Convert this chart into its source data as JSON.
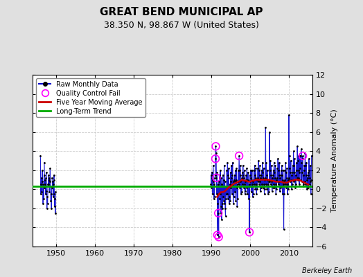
{
  "title": "GREAT BEND MUNICIPAL AP",
  "subtitle": "38.350 N, 98.867 W (United States)",
  "ylabel": "Temperature Anomaly (°C)",
  "credit": "Berkeley Earth",
  "xlim": [
    1944,
    2016
  ],
  "ylim": [
    -6,
    12
  ],
  "yticks": [
    -6,
    -4,
    -2,
    0,
    2,
    4,
    6,
    8,
    10,
    12
  ],
  "xticks": [
    1950,
    1960,
    1970,
    1980,
    1990,
    2000,
    2010
  ],
  "fig_bg": "#e0e0e0",
  "plot_bg": "#ffffff",
  "raw_color": "#0000cc",
  "dot_color": "#000000",
  "ma_color": "#cc0000",
  "trend_color": "#00aa00",
  "qc_color": "#ff00ff",
  "trend_y": 0.3,
  "raw_data_1946": [
    [
      1946.0,
      3.5
    ],
    [
      1946.08,
      -0.5
    ],
    [
      1946.17,
      0.5
    ],
    [
      1946.25,
      1.2
    ],
    [
      1946.33,
      -0.3
    ],
    [
      1946.42,
      0.8
    ],
    [
      1946.5,
      2.0
    ],
    [
      1946.58,
      0.5
    ],
    [
      1946.67,
      -1.5
    ],
    [
      1946.75,
      0.3
    ],
    [
      1946.83,
      -1.0
    ],
    [
      1946.92,
      1.5
    ]
  ],
  "raw_data_1947": [
    [
      1947.0,
      2.8
    ],
    [
      1947.08,
      0.2
    ],
    [
      1947.17,
      1.0
    ],
    [
      1947.25,
      0.5
    ],
    [
      1947.33,
      -0.5
    ],
    [
      1947.42,
      1.2
    ],
    [
      1947.5,
      1.8
    ],
    [
      1947.58,
      -0.2
    ],
    [
      1947.67,
      -2.0
    ],
    [
      1947.75,
      -0.8
    ],
    [
      1947.83,
      -1.5
    ],
    [
      1947.92,
      0.5
    ]
  ],
  "raw_data_1948": [
    [
      1948.0,
      1.5
    ],
    [
      1948.08,
      0.5
    ],
    [
      1948.17,
      1.2
    ],
    [
      1948.25,
      1.0
    ],
    [
      1948.33,
      -0.3
    ],
    [
      1948.42,
      0.8
    ],
    [
      1948.5,
      2.2
    ],
    [
      1948.58,
      0.3
    ],
    [
      1948.67,
      -1.2
    ],
    [
      1948.75,
      -0.5
    ],
    [
      1948.83,
      -2.0
    ],
    [
      1948.92,
      0.2
    ]
  ],
  "raw_data_1949": [
    [
      1949.0,
      1.2
    ],
    [
      1949.08,
      0.3
    ],
    [
      1949.17,
      0.8
    ],
    [
      1949.25,
      0.5
    ],
    [
      1949.33,
      -0.8
    ],
    [
      1949.42,
      1.0
    ],
    [
      1949.5,
      1.5
    ],
    [
      1949.58,
      -0.5
    ],
    [
      1949.67,
      -1.8
    ],
    [
      1949.75,
      -1.0
    ],
    [
      1949.83,
      -2.5
    ],
    [
      1949.92,
      -0.3
    ]
  ],
  "raw_data_1990s_on": [
    [
      1989.92,
      0.5
    ],
    [
      1990.0,
      1.5
    ],
    [
      1990.08,
      0.2
    ],
    [
      1990.17,
      1.8
    ],
    [
      1990.25,
      1.2
    ],
    [
      1990.33,
      -0.5
    ],
    [
      1990.42,
      1.0
    ],
    [
      1990.5,
      2.5
    ],
    [
      1990.58,
      0.8
    ],
    [
      1990.67,
      -1.0
    ],
    [
      1990.75,
      0.5
    ],
    [
      1990.83,
      -0.8
    ],
    [
      1990.92,
      1.2
    ],
    [
      1991.0,
      1.5
    ],
    [
      1991.08,
      3.2
    ],
    [
      1991.17,
      4.5
    ],
    [
      1991.25,
      3.8
    ],
    [
      1991.33,
      1.2
    ],
    [
      1991.42,
      -0.5
    ],
    [
      1991.5,
      1.8
    ],
    [
      1991.58,
      -4.8
    ],
    [
      1991.67,
      -1.5
    ],
    [
      1991.75,
      0.5
    ],
    [
      1991.83,
      -2.5
    ],
    [
      1991.92,
      -5.0
    ],
    [
      1992.0,
      0.8
    ],
    [
      1992.08,
      -1.0
    ],
    [
      1992.17,
      1.5
    ],
    [
      1992.25,
      -0.5
    ],
    [
      1992.33,
      2.0
    ],
    [
      1992.42,
      -2.5
    ],
    [
      1992.5,
      1.2
    ],
    [
      1992.58,
      -1.8
    ],
    [
      1992.67,
      -3.2
    ],
    [
      1992.75,
      0.5
    ],
    [
      1992.83,
      -1.5
    ],
    [
      1992.92,
      -2.0
    ],
    [
      1993.0,
      1.5
    ],
    [
      1993.08,
      -0.8
    ],
    [
      1993.17,
      1.0
    ],
    [
      1993.25,
      -1.2
    ],
    [
      1993.33,
      2.5
    ],
    [
      1993.42,
      -1.5
    ],
    [
      1993.5,
      0.8
    ],
    [
      1993.58,
      -2.0
    ],
    [
      1993.67,
      -2.8
    ],
    [
      1993.75,
      0.3
    ],
    [
      1993.83,
      -1.0
    ],
    [
      1993.92,
      -0.5
    ],
    [
      1994.0,
      2.0
    ],
    [
      1994.08,
      -0.5
    ],
    [
      1994.17,
      2.8
    ],
    [
      1994.25,
      1.5
    ],
    [
      1994.33,
      -1.0
    ],
    [
      1994.42,
      1.2
    ],
    [
      1994.5,
      2.2
    ],
    [
      1994.58,
      -0.8
    ],
    [
      1994.67,
      -1.5
    ],
    [
      1994.75,
      0.5
    ],
    [
      1994.83,
      -1.2
    ],
    [
      1994.92,
      0.8
    ],
    [
      1995.0,
      1.8
    ],
    [
      1995.08,
      0.2
    ],
    [
      1995.17,
      2.5
    ],
    [
      1995.25,
      1.2
    ],
    [
      1995.33,
      -0.5
    ],
    [
      1995.42,
      1.5
    ],
    [
      1995.5,
      2.8
    ],
    [
      1995.58,
      0.5
    ],
    [
      1995.67,
      -1.5
    ],
    [
      1995.75,
      0.8
    ],
    [
      1995.83,
      -0.8
    ],
    [
      1995.92,
      1.0
    ],
    [
      1996.0,
      1.5
    ],
    [
      1996.08,
      -0.3
    ],
    [
      1996.17,
      2.0
    ],
    [
      1996.25,
      0.8
    ],
    [
      1996.33,
      -1.2
    ],
    [
      1996.42,
      1.0
    ],
    [
      1996.5,
      2.2
    ],
    [
      1996.58,
      0.2
    ],
    [
      1996.67,
      -1.8
    ],
    [
      1996.75,
      0.5
    ],
    [
      1996.83,
      -1.0
    ],
    [
      1996.92,
      0.8
    ],
    [
      1997.0,
      2.0
    ],
    [
      1997.08,
      0.5
    ],
    [
      1997.17,
      3.5
    ],
    [
      1997.25,
      2.0
    ],
    [
      1997.33,
      0.2
    ],
    [
      1997.42,
      1.5
    ],
    [
      1997.5,
      2.5
    ],
    [
      1997.58,
      0.8
    ],
    [
      1997.67,
      -0.5
    ],
    [
      1997.75,
      1.0
    ],
    [
      1997.83,
      -0.3
    ],
    [
      1997.92,
      1.2
    ],
    [
      1998.0,
      1.8
    ],
    [
      1998.08,
      0.5
    ],
    [
      1998.17,
      2.5
    ],
    [
      1998.25,
      1.5
    ],
    [
      1998.33,
      0.2
    ],
    [
      1998.42,
      1.2
    ],
    [
      1998.5,
      2.0
    ],
    [
      1998.58,
      0.5
    ],
    [
      1998.67,
      -0.5
    ],
    [
      1998.75,
      0.8
    ],
    [
      1998.83,
      -0.2
    ],
    [
      1998.92,
      1.0
    ],
    [
      1999.0,
      1.5
    ],
    [
      1999.08,
      0.2
    ],
    [
      1999.17,
      2.2
    ],
    [
      1999.25,
      1.0
    ],
    [
      1999.33,
      -0.5
    ],
    [
      1999.42,
      1.0
    ],
    [
      1999.5,
      1.8
    ],
    [
      1999.58,
      0.3
    ],
    [
      1999.67,
      -1.0
    ],
    [
      1999.75,
      0.5
    ],
    [
      1999.83,
      -4.5
    ],
    [
      1999.92,
      0.8
    ],
    [
      2000.0,
      1.5
    ],
    [
      2000.08,
      0.3
    ],
    [
      2000.17,
      2.0
    ],
    [
      2000.25,
      1.2
    ],
    [
      2000.33,
      -0.3
    ],
    [
      2000.42,
      1.0
    ],
    [
      2000.5,
      2.0
    ],
    [
      2000.58,
      0.5
    ],
    [
      2000.67,
      -0.8
    ],
    [
      2000.75,
      0.8
    ],
    [
      2000.83,
      -0.5
    ],
    [
      2000.92,
      1.0
    ],
    [
      2001.0,
      2.0
    ],
    [
      2001.08,
      0.5
    ],
    [
      2001.17,
      2.5
    ],
    [
      2001.25,
      1.5
    ],
    [
      2001.33,
      0.0
    ],
    [
      2001.42,
      1.2
    ],
    [
      2001.5,
      2.2
    ],
    [
      2001.58,
      0.5
    ],
    [
      2001.67,
      -0.5
    ],
    [
      2001.75,
      1.0
    ],
    [
      2001.83,
      0.0
    ],
    [
      2001.92,
      1.2
    ],
    [
      2002.0,
      2.2
    ],
    [
      2002.08,
      0.8
    ],
    [
      2002.17,
      3.0
    ],
    [
      2002.25,
      2.0
    ],
    [
      2002.33,
      0.5
    ],
    [
      2002.42,
      1.5
    ],
    [
      2002.5,
      2.5
    ],
    [
      2002.58,
      0.8
    ],
    [
      2002.67,
      -0.2
    ],
    [
      2002.75,
      1.2
    ],
    [
      2002.83,
      0.2
    ],
    [
      2002.92,
      1.5
    ],
    [
      2003.0,
      2.0
    ],
    [
      2003.08,
      0.5
    ],
    [
      2003.17,
      2.8
    ],
    [
      2003.25,
      1.8
    ],
    [
      2003.33,
      0.2
    ],
    [
      2003.42,
      1.2
    ],
    [
      2003.5,
      2.2
    ],
    [
      2003.58,
      0.5
    ],
    [
      2003.67,
      -0.5
    ],
    [
      2003.75,
      1.0
    ],
    [
      2003.83,
      0.0
    ],
    [
      2003.92,
      1.2
    ],
    [
      2004.0,
      6.5
    ],
    [
      2004.08,
      0.5
    ],
    [
      2004.17,
      2.8
    ],
    [
      2004.25,
      1.5
    ],
    [
      2004.33,
      0.0
    ],
    [
      2004.42,
      1.0
    ],
    [
      2004.5,
      2.0
    ],
    [
      2004.58,
      0.5
    ],
    [
      2004.67,
      -0.5
    ],
    [
      2004.75,
      0.8
    ],
    [
      2004.83,
      -0.3
    ],
    [
      2004.92,
      1.0
    ],
    [
      2005.0,
      6.0
    ],
    [
      2005.08,
      0.8
    ],
    [
      2005.17,
      3.0
    ],
    [
      2005.25,
      2.0
    ],
    [
      2005.33,
      0.5
    ],
    [
      2005.42,
      1.5
    ],
    [
      2005.5,
      2.5
    ],
    [
      2005.58,
      0.8
    ],
    [
      2005.67,
      -0.2
    ],
    [
      2005.75,
      1.2
    ],
    [
      2005.83,
      0.2
    ],
    [
      2005.92,
      1.5
    ],
    [
      2006.0,
      2.0
    ],
    [
      2006.08,
      0.5
    ],
    [
      2006.17,
      2.8
    ],
    [
      2006.25,
      1.8
    ],
    [
      2006.33,
      0.2
    ],
    [
      2006.42,
      1.2
    ],
    [
      2006.5,
      2.5
    ],
    [
      2006.58,
      0.5
    ],
    [
      2006.67,
      -0.5
    ],
    [
      2006.75,
      1.0
    ],
    [
      2006.83,
      0.0
    ],
    [
      2006.92,
      1.2
    ],
    [
      2007.0,
      2.2
    ],
    [
      2007.08,
      0.8
    ],
    [
      2007.17,
      3.2
    ],
    [
      2007.25,
      2.0
    ],
    [
      2007.33,
      0.5
    ],
    [
      2007.42,
      1.5
    ],
    [
      2007.5,
      2.8
    ],
    [
      2007.58,
      0.8
    ],
    [
      2007.67,
      -0.2
    ],
    [
      2007.75,
      1.2
    ],
    [
      2007.83,
      0.2
    ],
    [
      2007.92,
      1.5
    ],
    [
      2008.0,
      2.0
    ],
    [
      2008.08,
      0.3
    ],
    [
      2008.17,
      2.5
    ],
    [
      2008.25,
      1.5
    ],
    [
      2008.33,
      -0.5
    ],
    [
      2008.42,
      1.0
    ],
    [
      2008.5,
      2.0
    ],
    [
      2008.58,
      0.5
    ],
    [
      2008.67,
      -4.2
    ],
    [
      2008.75,
      0.8
    ],
    [
      2008.83,
      -0.5
    ],
    [
      2008.92,
      1.0
    ],
    [
      2009.0,
      2.0
    ],
    [
      2009.08,
      0.5
    ],
    [
      2009.17,
      2.8
    ],
    [
      2009.25,
      1.8
    ],
    [
      2009.33,
      0.2
    ],
    [
      2009.42,
      1.2
    ],
    [
      2009.5,
      2.2
    ],
    [
      2009.58,
      0.5
    ],
    [
      2009.67,
      -0.5
    ],
    [
      2009.75,
      1.0
    ],
    [
      2009.83,
      0.0
    ],
    [
      2009.92,
      1.2
    ],
    [
      2010.0,
      7.8
    ],
    [
      2010.08,
      1.0
    ],
    [
      2010.17,
      3.5
    ],
    [
      2010.25,
      2.2
    ],
    [
      2010.33,
      0.8
    ],
    [
      2010.42,
      1.8
    ],
    [
      2010.5,
      3.0
    ],
    [
      2010.58,
      1.0
    ],
    [
      2010.67,
      0.0
    ],
    [
      2010.75,
      1.5
    ],
    [
      2010.83,
      0.5
    ],
    [
      2010.92,
      1.8
    ],
    [
      2011.0,
      2.5
    ],
    [
      2011.08,
      1.0
    ],
    [
      2011.17,
      4.0
    ],
    [
      2011.25,
      2.5
    ],
    [
      2011.33,
      0.8
    ],
    [
      2011.42,
      1.8
    ],
    [
      2011.5,
      3.2
    ],
    [
      2011.58,
      1.0
    ],
    [
      2011.67,
      0.2
    ],
    [
      2011.75,
      1.5
    ],
    [
      2011.83,
      0.5
    ],
    [
      2011.92,
      2.0
    ],
    [
      2012.0,
      2.8
    ],
    [
      2012.08,
      1.2
    ],
    [
      2012.17,
      4.5
    ],
    [
      2012.25,
      3.0
    ],
    [
      2012.33,
      1.0
    ],
    [
      2012.42,
      2.0
    ],
    [
      2012.5,
      3.5
    ],
    [
      2012.58,
      1.2
    ],
    [
      2012.67,
      0.5
    ],
    [
      2012.75,
      1.8
    ],
    [
      2012.83,
      3.5
    ],
    [
      2012.92,
      2.2
    ],
    [
      2013.0,
      3.5
    ],
    [
      2013.08,
      1.0
    ],
    [
      2013.17,
      4.2
    ],
    [
      2013.25,
      2.8
    ],
    [
      2013.33,
      0.8
    ],
    [
      2013.42,
      1.8
    ],
    [
      2013.5,
      3.2
    ],
    [
      2013.58,
      3.5
    ],
    [
      2013.67,
      0.3
    ],
    [
      2013.75,
      1.5
    ],
    [
      2013.83,
      0.5
    ],
    [
      2013.92,
      2.0
    ],
    [
      2014.0,
      2.5
    ],
    [
      2014.08,
      0.8
    ],
    [
      2014.17,
      3.8
    ],
    [
      2014.25,
      2.5
    ],
    [
      2014.33,
      0.5
    ],
    [
      2014.42,
      1.5
    ],
    [
      2014.5,
      2.8
    ],
    [
      2014.58,
      1.0
    ],
    [
      2014.67,
      0.0
    ],
    [
      2014.75,
      1.2
    ],
    [
      2014.83,
      0.2
    ],
    [
      2014.92,
      1.8
    ],
    [
      2015.0,
      1.5
    ],
    [
      2015.08,
      0.2
    ],
    [
      2015.17,
      3.2
    ],
    [
      2015.25,
      2.0
    ],
    [
      2015.33,
      0.5
    ],
    [
      2015.42,
      1.2
    ],
    [
      2015.5,
      2.5
    ],
    [
      2015.58,
      0.8
    ],
    [
      2015.67,
      -0.5
    ],
    [
      2015.75,
      1.0
    ],
    [
      2015.83,
      3.5
    ]
  ],
  "qc_fail_points": [
    [
      1991.08,
      3.2
    ],
    [
      1991.17,
      4.5
    ],
    [
      1991.33,
      1.2
    ],
    [
      1991.58,
      -4.8
    ],
    [
      1991.83,
      -2.5
    ],
    [
      1991.92,
      -5.0
    ],
    [
      1997.17,
      3.5
    ],
    [
      1999.83,
      -4.5
    ],
    [
      2013.58,
      3.5
    ]
  ],
  "moving_avg": [
    [
      1991.5,
      -0.8
    ],
    [
      1992.0,
      -0.5
    ],
    [
      1992.5,
      -0.3
    ],
    [
      1993.0,
      -0.3
    ],
    [
      1993.5,
      -0.2
    ],
    [
      1994.0,
      0.0
    ],
    [
      1994.5,
      0.2
    ],
    [
      1995.0,
      0.3
    ],
    [
      1995.5,
      0.5
    ],
    [
      1996.0,
      0.6
    ],
    [
      1996.5,
      0.7
    ],
    [
      1997.0,
      0.8
    ],
    [
      1997.5,
      0.9
    ],
    [
      1998.0,
      1.0
    ],
    [
      1998.5,
      0.9
    ],
    [
      1999.0,
      0.9
    ],
    [
      1999.5,
      0.8
    ],
    [
      2000.0,
      0.8
    ],
    [
      2000.5,
      0.9
    ],
    [
      2001.0,
      0.9
    ],
    [
      2001.5,
      1.0
    ],
    [
      2002.0,
      1.0
    ],
    [
      2002.5,
      1.0
    ],
    [
      2003.0,
      1.0
    ],
    [
      2003.5,
      1.0
    ],
    [
      2004.0,
      1.0
    ],
    [
      2004.5,
      1.0
    ],
    [
      2005.0,
      1.0
    ],
    [
      2005.5,
      0.9
    ],
    [
      2006.0,
      0.9
    ],
    [
      2006.5,
      0.8
    ],
    [
      2007.0,
      0.8
    ],
    [
      2007.5,
      0.8
    ],
    [
      2008.0,
      0.8
    ],
    [
      2008.5,
      0.7
    ],
    [
      2009.0,
      0.7
    ],
    [
      2009.5,
      0.7
    ],
    [
      2010.0,
      0.8
    ],
    [
      2010.5,
      0.9
    ],
    [
      2011.0,
      0.9
    ],
    [
      2011.5,
      1.0
    ],
    [
      2012.0,
      1.0
    ],
    [
      2012.5,
      1.0
    ],
    [
      2013.0,
      0.9
    ],
    [
      2013.5,
      0.8
    ],
    [
      2014.0,
      0.7
    ],
    [
      2014.5,
      0.6
    ],
    [
      2015.0,
      0.5
    ]
  ]
}
